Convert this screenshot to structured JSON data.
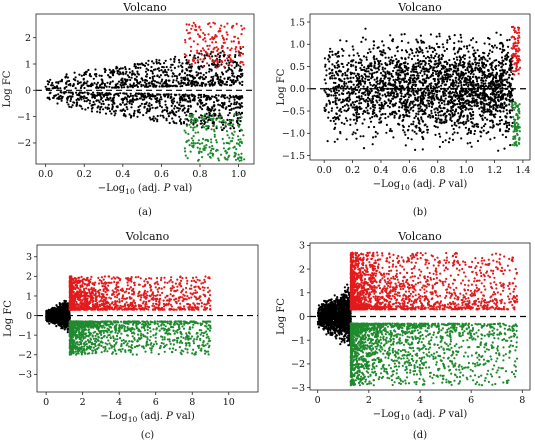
{
  "figure": {
    "title": "Volcano"
  },
  "colors": {
    "up": "#e31a1c",
    "down": "#1f8a2e",
    "ns": "#000000"
  },
  "chart_data": [
    {
      "panel_label": "(a)",
      "type": "scatter",
      "title": "Volcano",
      "xlabel_parts": {
        "prefix": "−Log",
        "sub": "10",
        "mid": " (adj. ",
        "ital": "P",
        "suffix": " val)"
      },
      "ylabel": "Log FC",
      "xticks": [
        "0.0",
        "0.2",
        "0.4",
        "0.6",
        "0.8",
        "1.0"
      ],
      "yticks": [
        "−2",
        "−1",
        "0",
        "1",
        "2"
      ],
      "xlim": [
        -0.05,
        1.08
      ],
      "ylim": [
        -2.8,
        2.9
      ],
      "threshold_line_y": 0,
      "point_groups": [
        {
          "name": "ns",
          "color": "#000000",
          "x_range": [
            0.0,
            1.02
          ],
          "y_abs_range": [
            0.05,
            1.6
          ],
          "shape": "fan",
          "n": 1400
        },
        {
          "name": "up",
          "color": "#e31a1c",
          "x_range": [
            0.72,
            1.03
          ],
          "y_range": [
            0.85,
            2.6
          ],
          "n": 160
        },
        {
          "name": "down",
          "color": "#1f8a2e",
          "x_range": [
            0.72,
            1.03
          ],
          "y_range": [
            -2.7,
            -0.9
          ],
          "n": 200
        }
      ]
    },
    {
      "panel_label": "(b)",
      "type": "scatter",
      "title": "Volcano",
      "xlabel_parts": {
        "prefix": "−Log",
        "sub": "10",
        "mid": " (adj. ",
        "ital": "P",
        "suffix": " val)"
      },
      "ylabel": "Log FC",
      "xticks": [
        "0.0",
        "0.2",
        "0.4",
        "0.6",
        "0.8",
        "1.0",
        "1.2",
        "1.4"
      ],
      "yticks": [
        "−1.5",
        "−1.0",
        "−0.5",
        "0.0",
        "0.5",
        "1.0",
        "1.5"
      ],
      "xlim": [
        -0.1,
        1.45
      ],
      "ylim": [
        -1.6,
        1.68
      ],
      "threshold_line_y": 0,
      "point_groups": [
        {
          "name": "ns",
          "color": "#000000",
          "x_range": [
            0.0,
            1.33
          ],
          "y_abs_range": [
            0.02,
            1.45
          ],
          "shape": "block",
          "n": 2600
        },
        {
          "name": "up",
          "color": "#e31a1c",
          "x_range": [
            1.32,
            1.38
          ],
          "y_range": [
            0.3,
            1.45
          ],
          "n": 80
        },
        {
          "name": "down",
          "color": "#1f8a2e",
          "x_range": [
            1.32,
            1.38
          ],
          "y_range": [
            -1.3,
            -0.3
          ],
          "n": 80
        }
      ]
    },
    {
      "panel_label": "(c)",
      "type": "scatter",
      "title": "Volcano",
      "xlabel_parts": {
        "prefix": "−Log",
        "sub": "10",
        "mid": " (adj. ",
        "ital": "P",
        "suffix": " val)"
      },
      "ylabel": "Log FC",
      "xticks": [
        "0",
        "2",
        "4",
        "6",
        "8",
        "10"
      ],
      "yticks": [
        "−3",
        "−2",
        "−1",
        "0",
        "1",
        "2",
        "3"
      ],
      "xlim": [
        -0.5,
        11.6
      ],
      "ylim": [
        -3.9,
        3.6
      ],
      "threshold_line_y": 0,
      "point_groups": [
        {
          "name": "ns",
          "color": "#000000",
          "x_range": [
            0.0,
            1.3
          ],
          "y_abs_range": [
            0.0,
            1.0
          ],
          "shape": "cone",
          "n": 1200
        },
        {
          "name": "up",
          "color": "#e31a1c",
          "x_range": [
            1.3,
            9.0
          ],
          "y_range": [
            0.3,
            2.0
          ],
          "shape": "decay",
          "n": 1300
        },
        {
          "name": "down",
          "color": "#1f8a2e",
          "x_range": [
            1.3,
            9.0
          ],
          "y_range": [
            -2.0,
            -0.3
          ],
          "shape": "decay",
          "n": 1300
        }
      ]
    },
    {
      "panel_label": "(d)",
      "type": "scatter",
      "title": "Volcano",
      "xlabel_parts": {
        "prefix": "−Log",
        "sub": "10",
        "mid": " (adj. ",
        "ital": "P",
        "suffix": " val)"
      },
      "ylabel": "Log FC",
      "xticks": [
        "0",
        "2",
        "4",
        "6",
        "8"
      ],
      "yticks": [
        "−3",
        "−2",
        "−1",
        "0",
        "1",
        "2",
        "3"
      ],
      "xlim": [
        -0.3,
        8.3
      ],
      "ylim": [
        -3.1,
        3.1
      ],
      "threshold_line_y": 0,
      "point_groups": [
        {
          "name": "ns",
          "color": "#000000",
          "x_range": [
            0.0,
            1.3
          ],
          "y_abs_range": [
            0.0,
            1.6
          ],
          "shape": "cone",
          "n": 1400
        },
        {
          "name": "up",
          "color": "#e31a1c",
          "x_range": [
            1.3,
            7.8
          ],
          "y_range": [
            0.3,
            2.7
          ],
          "shape": "decay",
          "n": 1800
        },
        {
          "name": "down",
          "color": "#1f8a2e",
          "x_range": [
            1.3,
            7.8
          ],
          "y_range": [
            -2.9,
            -0.3
          ],
          "shape": "decay",
          "n": 1800
        }
      ]
    }
  ]
}
